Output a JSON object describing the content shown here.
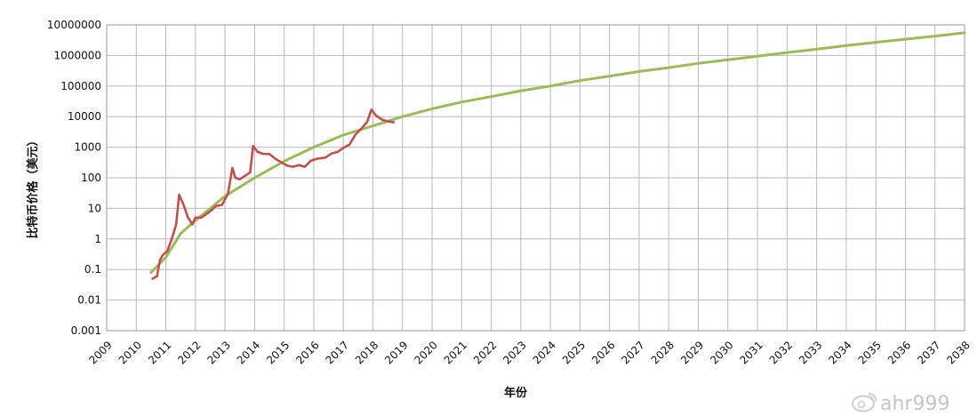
{
  "chart_data": {
    "type": "line",
    "title": "",
    "xlabel": "年份",
    "ylabel": "比特币价格（美元）",
    "yscale": "log",
    "ylim": [
      0.001,
      10000000
    ],
    "xlim": [
      2009,
      2038
    ],
    "grid": true,
    "y_ticks": [
      "10000000",
      "1000000",
      "100000",
      "10000",
      "1000",
      "100",
      "10",
      "1",
      "0.1",
      "0.01",
      "0.001"
    ],
    "x_ticks": [
      "2009",
      "2010",
      "2011",
      "2012",
      "2013",
      "2014",
      "2015",
      "2016",
      "2017",
      "2018",
      "2019",
      "2020",
      "2021",
      "2022",
      "2023",
      "2024",
      "2025",
      "2026",
      "2027",
      "2028",
      "2029",
      "2030",
      "2031",
      "2032",
      "2033",
      "2034",
      "2035",
      "2036",
      "2037",
      "2038"
    ],
    "series": [
      {
        "color": "#c0504d",
        "points": [
          [
            2010.55,
            0.05
          ],
          [
            2010.7,
            0.06
          ],
          [
            2010.8,
            0.2
          ],
          [
            2010.9,
            0.3
          ],
          [
            2011.05,
            0.4
          ],
          [
            2011.2,
            1.0
          ],
          [
            2011.35,
            3
          ],
          [
            2011.45,
            28
          ],
          [
            2011.6,
            13
          ],
          [
            2011.75,
            5
          ],
          [
            2011.9,
            3
          ],
          [
            2012.0,
            5
          ],
          [
            2012.2,
            5
          ],
          [
            2012.5,
            8
          ],
          [
            2012.7,
            12
          ],
          [
            2012.9,
            13
          ],
          [
            2013.1,
            30
          ],
          [
            2013.25,
            210
          ],
          [
            2013.35,
            100
          ],
          [
            2013.5,
            90
          ],
          [
            2013.7,
            120
          ],
          [
            2013.85,
            150
          ],
          [
            2013.95,
            1100
          ],
          [
            2014.1,
            700
          ],
          [
            2014.3,
            600
          ],
          [
            2014.5,
            600
          ],
          [
            2014.7,
            420
          ],
          [
            2014.9,
            320
          ],
          [
            2015.1,
            250
          ],
          [
            2015.3,
            230
          ],
          [
            2015.5,
            260
          ],
          [
            2015.7,
            230
          ],
          [
            2015.9,
            360
          ],
          [
            2016.1,
            420
          ],
          [
            2016.4,
            460
          ],
          [
            2016.6,
            620
          ],
          [
            2016.8,
            700
          ],
          [
            2017.0,
            950
          ],
          [
            2017.2,
            1200
          ],
          [
            2017.4,
            2500
          ],
          [
            2017.6,
            4000
          ],
          [
            2017.8,
            6500
          ],
          [
            2017.95,
            17000
          ],
          [
            2018.1,
            11000
          ],
          [
            2018.3,
            8000
          ],
          [
            2018.5,
            7000
          ],
          [
            2018.7,
            6500
          ]
        ]
      },
      {
        "color": "#9bbb59",
        "points": [
          [
            2010.5,
            0.08
          ],
          [
            2011,
            0.25
          ],
          [
            2011.5,
            1.5
          ],
          [
            2012,
            4
          ],
          [
            2012.5,
            10
          ],
          [
            2013,
            25
          ],
          [
            2014,
            100
          ],
          [
            2015,
            350
          ],
          [
            2016,
            1000
          ],
          [
            2017,
            2500
          ],
          [
            2018,
            5000
          ],
          [
            2019,
            10000
          ],
          [
            2020,
            18000
          ],
          [
            2021,
            30000
          ],
          [
            2022,
            45000
          ],
          [
            2023,
            70000
          ],
          [
            2024,
            100000
          ],
          [
            2025,
            150000
          ],
          [
            2026,
            210000
          ],
          [
            2027,
            300000
          ],
          [
            2028,
            400000
          ],
          [
            2029,
            550000
          ],
          [
            2030,
            720000
          ],
          [
            2031,
            950000
          ],
          [
            2032,
            1250000
          ],
          [
            2033,
            1600000
          ],
          [
            2034,
            2100000
          ],
          [
            2035,
            2700000
          ],
          [
            2036,
            3400000
          ],
          [
            2037,
            4300000
          ],
          [
            2038,
            5500000
          ]
        ]
      }
    ]
  },
  "watermark": {
    "text": "ahr999",
    "icon": "weibo-icon"
  }
}
